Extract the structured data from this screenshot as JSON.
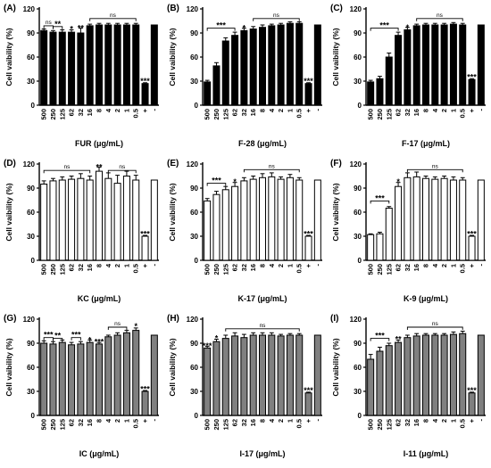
{
  "figure": {
    "categories": [
      "500",
      "250",
      "125",
      "62",
      "32",
      "16",
      "8",
      "4",
      "2",
      "1",
      "0.5",
      "+",
      "-"
    ]
  },
  "chart_data": [
    {
      "type": "bar",
      "panel": "(A)",
      "xlabel": "FUR (μg/mL)",
      "ylabel": "Cell vaibility (%)",
      "ylim": [
        0,
        120
      ],
      "yticks": [
        0,
        30,
        60,
        90,
        120
      ],
      "fill": "#000000",
      "categories": [
        "500",
        "250",
        "125",
        "62",
        "32",
        "16",
        "8",
        "4",
        "2",
        "1",
        "0.5",
        "+",
        "-"
      ],
      "values": [
        93,
        91,
        91,
        91,
        90,
        99,
        100,
        100,
        100,
        100,
        100,
        27,
        100
      ],
      "errors": [
        2,
        2,
        3,
        3,
        6,
        2,
        2,
        2,
        2,
        2,
        2,
        1,
        0
      ],
      "annotations": [
        {
          "text": "ns",
          "type": "bracket",
          "from": 0,
          "to": 1,
          "y": 99
        },
        {
          "text": "**",
          "type": "bracket",
          "from": 1,
          "to": 2,
          "y": 98
        },
        {
          "text": "*",
          "type": "star",
          "index": 3,
          "y": 96
        },
        {
          "text": "**",
          "type": "star",
          "index": 4,
          "y": 97
        },
        {
          "text": "ns",
          "type": "bracket",
          "from": 5,
          "to": 10,
          "y": 108
        },
        {
          "text": "***",
          "type": "star",
          "index": 11,
          "y": 31
        }
      ]
    },
    {
      "type": "bar",
      "panel": "(B)",
      "xlabel": "F-28 (μg/mL)",
      "ylabel": "Cell vaibility (%)",
      "ylim": [
        0,
        120
      ],
      "yticks": [
        0,
        30,
        60,
        90,
        120
      ],
      "fill": "#000000",
      "categories": [
        "500",
        "250",
        "125",
        "62",
        "32",
        "16",
        "8",
        "4",
        "2",
        "1",
        "0.5",
        "+",
        "-"
      ],
      "values": [
        29,
        49,
        80,
        87,
        93,
        95,
        97,
        99,
        100,
        102,
        102,
        27,
        100
      ],
      "errors": [
        2,
        4,
        4,
        4,
        3,
        3,
        3,
        2,
        2,
        2,
        2,
        1,
        0
      ],
      "annotations": [
        {
          "text": "***",
          "type": "bracket",
          "from": 0,
          "to": 3,
          "y": 96
        },
        {
          "text": "*",
          "type": "star",
          "index": 4,
          "y": 97
        },
        {
          "text": "ns",
          "type": "bracket",
          "from": 5,
          "to": 10,
          "y": 108
        },
        {
          "text": "***",
          "type": "star",
          "index": 11,
          "y": 31
        }
      ]
    },
    {
      "type": "bar",
      "panel": "(C)",
      "xlabel": "F-17 (μg/mL)",
      "ylabel": "Cell vaibility (%)",
      "ylim": [
        0,
        120
      ],
      "yticks": [
        0,
        30,
        60,
        90,
        120
      ],
      "fill": "#000000",
      "categories": [
        "500",
        "250",
        "125",
        "62",
        "32",
        "16",
        "8",
        "4",
        "2",
        "1",
        "0.5",
        "+",
        "-"
      ],
      "values": [
        29,
        33,
        60,
        87,
        94,
        99,
        100,
        100,
        100,
        101,
        100,
        32,
        100
      ],
      "errors": [
        2,
        3,
        5,
        4,
        3,
        2,
        2,
        2,
        2,
        2,
        2,
        1,
        0
      ],
      "annotations": [
        {
          "text": "***",
          "type": "bracket",
          "from": 0,
          "to": 3,
          "y": 96
        },
        {
          "text": "*",
          "type": "star",
          "index": 4,
          "y": 98
        },
        {
          "text": "ns",
          "type": "bracket",
          "from": 5,
          "to": 10,
          "y": 108
        },
        {
          "text": "***",
          "type": "star",
          "index": 11,
          "y": 36
        }
      ]
    },
    {
      "type": "bar",
      "panel": "(D)",
      "xlabel": "KC (μg/mL)",
      "ylabel": "Cell vaibility (%)",
      "ylim": [
        0,
        120
      ],
      "yticks": [
        0,
        30,
        60,
        90,
        120
      ],
      "fill": "#ffffff",
      "categories": [
        "500",
        "250",
        "125",
        "62",
        "32",
        "16",
        "8",
        "4",
        "2",
        "1",
        "0.5",
        "+",
        "-"
      ],
      "values": [
        95,
        99,
        100,
        101,
        102,
        100,
        111,
        102,
        96,
        105,
        100,
        30,
        100
      ],
      "errors": [
        4,
        3,
        4,
        4,
        6,
        5,
        5,
        7,
        10,
        6,
        6,
        1,
        0
      ],
      "annotations": [
        {
          "text": "ns",
          "type": "bracket",
          "from": 0,
          "to": 5,
          "y": 112
        },
        {
          "text": "**",
          "type": "star",
          "index": 6,
          "y": 117
        },
        {
          "text": "ns",
          "type": "bracket",
          "from": 7,
          "to": 10,
          "y": 112
        },
        {
          "text": "***",
          "type": "star",
          "index": 11,
          "y": 34
        }
      ]
    },
    {
      "type": "bar",
      "panel": "(E)",
      "xlabel": "K-17 (μg/mL)",
      "ylabel": "Cell vaibility (%)",
      "ylim": [
        0,
        120
      ],
      "yticks": [
        0,
        30,
        60,
        90,
        120
      ],
      "fill": "#ffffff",
      "categories": [
        "500",
        "250",
        "125",
        "62",
        "32",
        "16",
        "8",
        "4",
        "2",
        "1",
        "0.5",
        "+",
        "-"
      ],
      "values": [
        74,
        82,
        88,
        92,
        99,
        101,
        103,
        104,
        101,
        103,
        100,
        30,
        100
      ],
      "errors": [
        3,
        4,
        4,
        5,
        4,
        4,
        5,
        5,
        3,
        4,
        3,
        1,
        0
      ],
      "annotations": [
        {
          "text": "***",
          "type": "bracket",
          "from": 0,
          "to": 2,
          "y": 96
        },
        {
          "text": "*",
          "type": "star",
          "index": 3,
          "y": 99
        },
        {
          "text": "ns",
          "type": "bracket",
          "from": 4,
          "to": 10,
          "y": 113
        },
        {
          "text": "***",
          "type": "star",
          "index": 11,
          "y": 34
        }
      ]
    },
    {
      "type": "bar",
      "panel": "(F)",
      "xlabel": "K-9 (μg/mL)",
      "ylabel": "Cell vaibility (%)",
      "ylim": [
        0,
        120
      ],
      "yticks": [
        0,
        30,
        60,
        90,
        120
      ],
      "fill": "#ffffff",
      "categories": [
        "500",
        "250",
        "125",
        "62",
        "32",
        "16",
        "8",
        "4",
        "2",
        "1",
        "0.5",
        "+",
        "-"
      ],
      "values": [
        32,
        33,
        65,
        92,
        103,
        104,
        102,
        101,
        102,
        100,
        100,
        30,
        100
      ],
      "errors": [
        1,
        2,
        2,
        5,
        6,
        6,
        3,
        3,
        3,
        4,
        3,
        1,
        0
      ],
      "annotations": [
        {
          "text": "***",
          "type": "bracket",
          "from": 0,
          "to": 2,
          "y": 74
        },
        {
          "text": "*",
          "type": "star",
          "index": 3,
          "y": 99
        },
        {
          "text": "ns",
          "type": "bracket",
          "from": 4,
          "to": 10,
          "y": 113
        },
        {
          "text": "***",
          "type": "star",
          "index": 11,
          "y": 34
        }
      ]
    },
    {
      "type": "bar",
      "panel": "(G)",
      "xlabel": "IC (μg/mL)",
      "ylabel": "Cell vaibility (%)",
      "ylim": [
        0,
        120
      ],
      "yticks": [
        0,
        30,
        60,
        90,
        120
      ],
      "fill": "#808080",
      "categories": [
        "500",
        "250",
        "125",
        "62",
        "32",
        "16",
        "8",
        "4",
        "2",
        "1",
        "0.5",
        "+",
        "-"
      ],
      "values": [
        90,
        89,
        91,
        88,
        89,
        91,
        89,
        98,
        100,
        103,
        106,
        30,
        100
      ],
      "errors": [
        3,
        3,
        3,
        3,
        3,
        3,
        2,
        2,
        3,
        3,
        3,
        1,
        0
      ],
      "annotations": [
        {
          "text": "***",
          "type": "bracket",
          "from": 0,
          "to": 1,
          "y": 97
        },
        {
          "text": "**",
          "type": "bracket",
          "from": 1,
          "to": 2,
          "y": 96
        },
        {
          "text": "***",
          "type": "bracket",
          "from": 3,
          "to": 4,
          "y": 97
        },
        {
          "text": "*",
          "type": "star",
          "index": 5,
          "y": 95
        },
        {
          "text": "***",
          "type": "star",
          "index": 6,
          "y": 93
        },
        {
          "text": "ns",
          "type": "bracket",
          "from": 7,
          "to": 9,
          "y": 110
        },
        {
          "text": "*",
          "type": "star",
          "index": 10,
          "y": 112
        },
        {
          "text": "***",
          "type": "star",
          "index": 11,
          "y": 34
        }
      ]
    },
    {
      "type": "bar",
      "panel": "(H)",
      "xlabel": "I-17 (μg/mL)",
      "ylabel": "Cell vaibility (%)",
      "ylim": [
        0,
        120
      ],
      "yticks": [
        0,
        30,
        60,
        90,
        120
      ],
      "fill": "#808080",
      "categories": [
        "500",
        "250",
        "125",
        "62",
        "32",
        "16",
        "8",
        "4",
        "2",
        "1",
        "0.5",
        "+",
        "-"
      ],
      "values": [
        84,
        92,
        96,
        99,
        97,
        100,
        100,
        100,
        99,
        100,
        100,
        28,
        100
      ],
      "errors": [
        2,
        3,
        4,
        4,
        4,
        3,
        3,
        3,
        2,
        2,
        2,
        1,
        0
      ],
      "annotations": [
        {
          "text": "***",
          "type": "star",
          "index": 0,
          "y": 88
        },
        {
          "text": "*",
          "type": "star",
          "index": 1,
          "y": 97
        },
        {
          "text": "ns",
          "type": "bracket",
          "from": 2,
          "to": 10,
          "y": 108
        },
        {
          "text": "***",
          "type": "star",
          "index": 11,
          "y": 32
        }
      ]
    },
    {
      "type": "bar",
      "panel": "(I)",
      "xlabel": "I-11 (μg/mL)",
      "ylabel": "Cell vaibility (%)",
      "ylim": [
        0,
        120
      ],
      "yticks": [
        0,
        30,
        60,
        90,
        120
      ],
      "fill": "#808080",
      "categories": [
        "500",
        "250",
        "125",
        "62",
        "32",
        "16",
        "8",
        "4",
        "2",
        "1",
        "0.5",
        "+",
        "-"
      ],
      "values": [
        70,
        80,
        87,
        91,
        97,
        99,
        100,
        100,
        100,
        101,
        102,
        28,
        100
      ],
      "errors": [
        6,
        5,
        3,
        3,
        3,
        3,
        2,
        2,
        2,
        3,
        3,
        1,
        0
      ],
      "annotations": [
        {
          "text": "***",
          "type": "bracket",
          "from": 0,
          "to": 2,
          "y": 96
        },
        {
          "text": "**",
          "type": "star",
          "index": 3,
          "y": 96
        },
        {
          "text": "ns",
          "type": "bracket",
          "from": 4,
          "to": 10,
          "y": 110
        },
        {
          "text": "***",
          "type": "star",
          "index": 11,
          "y": 32
        }
      ]
    }
  ]
}
